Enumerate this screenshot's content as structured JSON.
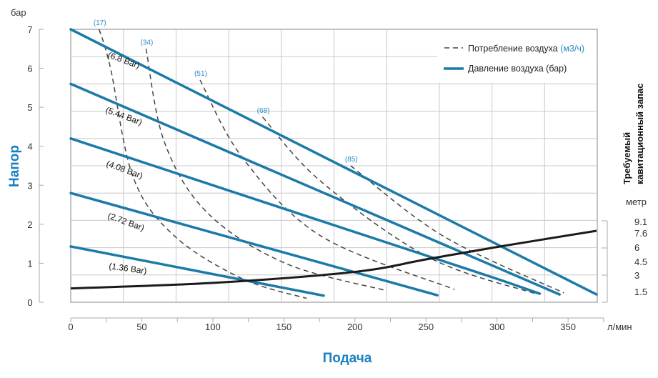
{
  "chart_data": {
    "type": "line",
    "xlabel": "Подача",
    "x_unit": "л/мин",
    "ylabel": "Напор",
    "y_unit": "бар",
    "y2label_line1": "Требуемый",
    "y2label_line2": "кавитационный запас",
    "y2_unit": "метр",
    "xlim": [
      0,
      370
    ],
    "ylim": [
      0,
      7
    ],
    "x_ticks": [
      "0",
      "50",
      "100",
      "150",
      "200",
      "250",
      "300",
      "350"
    ],
    "y_ticks": [
      "0",
      "1",
      "2",
      "3",
      "4",
      "5",
      "6",
      "7"
    ],
    "y2_ticks": [
      "9.1",
      "7.6",
      "6",
      "4.5",
      "3",
      "1.5"
    ],
    "grid": true,
    "legend_position": "top-right",
    "legend": {
      "air_consumption": "Потребление воздуха",
      "air_consumption_unit": "(м3/ч)",
      "air_pressure": "Давление воздуха (бар)"
    },
    "colors": {
      "pressure": "#1b7aa8",
      "air": "#444444",
      "npsh": "#1a1a1a",
      "accent": "#1a80c0"
    },
    "pressure_series": [
      {
        "name": "(6.8 Bar)",
        "points": [
          [
            0,
            7.0
          ],
          [
            370,
            0.2
          ]
        ]
      },
      {
        "name": "(5.44 Bar)",
        "points": [
          [
            0,
            5.6
          ],
          [
            344,
            0.2
          ]
        ]
      },
      {
        "name": "(4.08 Bar)",
        "points": [
          [
            0,
            4.2
          ],
          [
            150,
            2.4
          ],
          [
            250,
            1.2
          ],
          [
            300,
            0.6
          ],
          [
            330,
            0.22
          ]
        ]
      },
      {
        "name": "(2.72 Bar)",
        "points": [
          [
            0,
            2.8
          ],
          [
            258,
            0.18
          ]
        ]
      },
      {
        "name": "(1.36 Bar)",
        "points": [
          [
            0,
            1.43
          ],
          [
            178,
            0.17
          ]
        ]
      }
    ],
    "air_series": [
      {
        "name": "(17)",
        "points": [
          [
            20,
            7.0
          ],
          [
            28,
            6.0
          ],
          [
            44,
            3.2
          ],
          [
            73,
            1.7
          ],
          [
            121,
            0.6
          ],
          [
            166,
            0.1
          ]
        ]
      },
      {
        "name": "(34)",
        "points": [
          [
            53,
            6.5
          ],
          [
            66,
            4.1
          ],
          [
            96,
            2.3
          ],
          [
            151,
            1.0
          ],
          [
            222,
            0.3
          ]
        ]
      },
      {
        "name": "(51)",
        "points": [
          [
            91,
            5.7
          ],
          [
            121,
            3.7
          ],
          [
            176,
            1.7
          ],
          [
            270,
            0.33
          ]
        ]
      },
      {
        "name": "(68)",
        "points": [
          [
            135,
            4.75
          ],
          [
            176,
            3.1
          ],
          [
            252,
            1.15
          ],
          [
            327,
            0.22
          ]
        ]
      },
      {
        "name": "(85)",
        "points": [
          [
            197,
            3.5
          ],
          [
            262,
            1.7
          ],
          [
            347,
            0.24
          ]
        ]
      }
    ],
    "npsh_series": {
      "unit": "метр",
      "points": [
        [
          0,
          1.5
        ],
        [
          100,
          2.1
        ],
        [
          200,
          3.3
        ],
        [
          250,
          4.65
        ],
        [
          300,
          6.0
        ],
        [
          370,
          7.75
        ]
      ]
    }
  }
}
